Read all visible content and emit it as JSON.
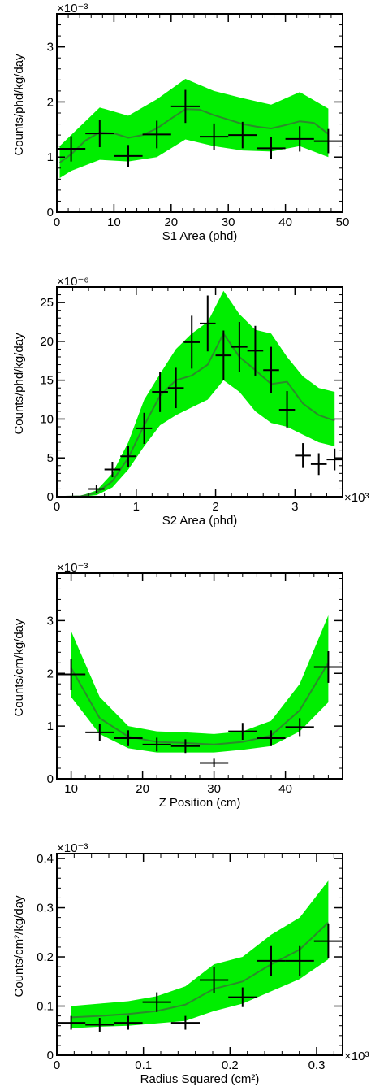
{
  "chart_data": [
    {
      "type": "scatter",
      "xlabel": "S1 Area (phd)",
      "ylabel": "Counts/phd/kg/day",
      "y_multiplier": "×10⁻³",
      "x_multiplier": "",
      "xlim": [
        0,
        50
      ],
      "ylim": [
        0,
        3.6
      ],
      "xticks": [
        0,
        10,
        20,
        30,
        40,
        50
      ],
      "xtick_labels": [
        "0",
        "10",
        "20",
        "30",
        "40",
        "50"
      ],
      "yticks": [
        0,
        1,
        2,
        3
      ],
      "ytick_labels": [
        "0",
        "1",
        "2",
        "3"
      ],
      "series": [
        {
          "kind": "band",
          "color": "#00ee00",
          "x": [
            0.5,
            2.5,
            7.5,
            12.5,
            17.5,
            22.5,
            27.5,
            32.5,
            37.5,
            42.5,
            47.5
          ],
          "lo": [
            0.62,
            0.75,
            0.95,
            0.92,
            1.0,
            1.32,
            1.2,
            1.12,
            1.1,
            1.2,
            1.0
          ],
          "hi": [
            1.2,
            1.4,
            1.9,
            1.75,
            2.05,
            2.42,
            2.2,
            2.07,
            1.95,
            2.18,
            1.88
          ]
        },
        {
          "kind": "line",
          "color": "#2c8a2c",
          "x": [
            0.5,
            2.5,
            5,
            7.5,
            10,
            12.5,
            15,
            17.5,
            20,
            22.5,
            25,
            27.5,
            30,
            32.5,
            35,
            37.5,
            40,
            42.5,
            45,
            47.5
          ],
          "y": [
            0.9,
            1.05,
            1.3,
            1.45,
            1.43,
            1.35,
            1.4,
            1.52,
            1.7,
            1.87,
            1.86,
            1.76,
            1.68,
            1.6,
            1.55,
            1.52,
            1.58,
            1.65,
            1.62,
            1.42
          ]
        },
        {
          "kind": "points",
          "x": [
            2.5,
            7.5,
            12.5,
            17.5,
            22.5,
            27.5,
            32.5,
            37.5,
            42.5,
            47.5
          ],
          "y": [
            1.15,
            1.43,
            1.02,
            1.41,
            1.92,
            1.37,
            1.4,
            1.16,
            1.33,
            1.29
          ],
          "xerr": [
            2.5,
            2.5,
            2.5,
            2.5,
            2.5,
            2.5,
            2.5,
            2.5,
            2.5,
            2.5
          ],
          "yerr": [
            0.23,
            0.25,
            0.2,
            0.25,
            0.3,
            0.24,
            0.24,
            0.2,
            0.23,
            0.22
          ]
        }
      ]
    },
    {
      "type": "scatter",
      "xlabel": "S2 Area (phd)",
      "ylabel": "Counts/phd/kg/day",
      "y_multiplier": "×10⁻⁶",
      "x_multiplier": "×10³",
      "xlim": [
        0,
        3.6
      ],
      "ylim": [
        0,
        27
      ],
      "xticks": [
        0,
        1,
        2,
        3
      ],
      "xtick_labels": [
        "0",
        "1",
        "2",
        "3"
      ],
      "yticks": [
        0,
        5,
        10,
        15,
        20,
        25
      ],
      "ytick_labels": [
        "0",
        "5",
        "10",
        "15",
        "20",
        "25"
      ],
      "series": [
        {
          "kind": "band",
          "color": "#00ee00",
          "x": [
            0.1,
            0.3,
            0.5,
            0.7,
            0.9,
            1.1,
            1.3,
            1.5,
            1.7,
            1.9,
            2.1,
            2.3,
            2.5,
            2.7,
            2.9,
            3.1,
            3.3,
            3.5
          ],
          "lo": [
            0,
            0,
            0.2,
            1.2,
            3.5,
            6.5,
            9.2,
            10.5,
            11.5,
            12.5,
            15.0,
            13.5,
            11.0,
            9.5,
            9.0,
            8.0,
            7.0,
            6.5
          ],
          "hi": [
            0,
            0.1,
            0.8,
            3.0,
            7.0,
            12.5,
            15.8,
            19.0,
            21.0,
            22.5,
            26.5,
            23.5,
            21.5,
            21.0,
            18.0,
            15.5,
            14.0,
            13.5
          ]
        },
        {
          "kind": "line",
          "color": "#2c8a2c",
          "x": [
            0.1,
            0.3,
            0.5,
            0.7,
            0.9,
            1.1,
            1.3,
            1.5,
            1.7,
            1.9,
            2.1,
            2.3,
            2.5,
            2.7,
            2.9,
            3.1,
            3.3,
            3.5
          ],
          "y": [
            0,
            0.05,
            0.5,
            2.0,
            5.0,
            9.2,
            13.0,
            15.0,
            15.6,
            17.0,
            21.0,
            18.0,
            16.3,
            14.5,
            14.8,
            12.0,
            10.5,
            9.8
          ]
        },
        {
          "kind": "points",
          "x": [
            0.5,
            0.7,
            0.9,
            1.1,
            1.3,
            1.5,
            1.7,
            1.9,
            2.1,
            2.3,
            2.5,
            2.7,
            2.9,
            3.1,
            3.3,
            3.5
          ],
          "y": [
            1.0,
            3.5,
            5.2,
            8.8,
            13.5,
            14.0,
            19.9,
            22.3,
            18.2,
            19.3,
            18.8,
            16.3,
            11.2,
            5.3,
            4.2,
            4.8
          ],
          "xerr": [
            0.1,
            0.1,
            0.1,
            0.1,
            0.1,
            0.1,
            0.1,
            0.1,
            0.1,
            0.1,
            0.1,
            0.1,
            0.1,
            0.1,
            0.1,
            0.1
          ],
          "yerr": [
            0.5,
            1.0,
            1.4,
            2.0,
            2.6,
            2.6,
            3.4,
            3.6,
            3.2,
            3.2,
            3.2,
            3.0,
            2.4,
            1.6,
            1.4,
            1.4
          ]
        }
      ]
    },
    {
      "type": "scatter",
      "xlabel": "Z Position (cm)",
      "ylabel": "Counts/cm/kg/day",
      "y_multiplier": "×10⁻³",
      "x_multiplier": "",
      "xlim": [
        8,
        48
      ],
      "ylim": [
        0,
        3.9
      ],
      "xticks": [
        10,
        20,
        30,
        40
      ],
      "xtick_labels": [
        "10",
        "20",
        "30",
        "40"
      ],
      "yticks": [
        0,
        1,
        2,
        3
      ],
      "ytick_labels": [
        "0",
        "1",
        "2",
        "3"
      ],
      "series": [
        {
          "kind": "band",
          "color": "#00ee00",
          "x": [
            10,
            14,
            18,
            22,
            26,
            30,
            34,
            38,
            42,
            46
          ],
          "lo": [
            1.55,
            0.85,
            0.58,
            0.5,
            0.5,
            0.5,
            0.55,
            0.62,
            0.9,
            1.45
          ],
          "hi": [
            2.8,
            1.55,
            1.0,
            0.9,
            0.88,
            0.85,
            0.9,
            1.1,
            1.8,
            3.1
          ]
        },
        {
          "kind": "line",
          "color": "#2c8a2c",
          "x": [
            10,
            14,
            18,
            22,
            26,
            30,
            34,
            38,
            42,
            46
          ],
          "y": [
            2.1,
            1.15,
            0.8,
            0.7,
            0.68,
            0.65,
            0.7,
            0.82,
            1.3,
            2.2
          ]
        },
        {
          "kind": "points",
          "x": [
            10,
            14,
            18,
            22,
            26,
            30,
            34,
            38,
            42,
            46
          ],
          "y": [
            1.98,
            0.88,
            0.77,
            0.65,
            0.62,
            0.3,
            0.9,
            0.77,
            0.98,
            2.12
          ],
          "xerr": [
            2,
            2,
            2,
            2,
            2,
            2,
            2,
            2,
            2,
            2
          ],
          "yerr": [
            0.3,
            0.16,
            0.15,
            0.13,
            0.13,
            0.08,
            0.16,
            0.15,
            0.17,
            0.3
          ]
        }
      ]
    },
    {
      "type": "scatter",
      "xlabel": "Radius Squared (cm²)",
      "ylabel": "Counts/cm²/kg/day",
      "y_multiplier": "×10⁻³",
      "x_multiplier": "×10³",
      "xlim": [
        0,
        0.33
      ],
      "ylim": [
        0,
        0.41
      ],
      "xticks": [
        0,
        0.1,
        0.2,
        0.3
      ],
      "xtick_labels": [
        "0",
        "0.1",
        "0.2",
        "0.3"
      ],
      "yticks": [
        0,
        0.1,
        0.2,
        0.3,
        0.4
      ],
      "ytick_labels": [
        "0",
        "0.1",
        "0.2",
        "0.3",
        "0.4"
      ],
      "series": [
        {
          "kind": "band",
          "color": "#00ee00",
          "x": [
            0.0165,
            0.0495,
            0.0825,
            0.1155,
            0.1485,
            0.1815,
            0.2145,
            0.2475,
            0.2805,
            0.3135
          ],
          "lo": [
            0.055,
            0.058,
            0.06,
            0.065,
            0.07,
            0.09,
            0.105,
            0.13,
            0.155,
            0.195
          ],
          "hi": [
            0.1,
            0.105,
            0.11,
            0.12,
            0.14,
            0.185,
            0.2,
            0.245,
            0.28,
            0.355
          ]
        },
        {
          "kind": "line",
          "color": "#2c8a2c",
          "x": [
            0.0165,
            0.0495,
            0.0825,
            0.1155,
            0.1485,
            0.1815,
            0.2145,
            0.2475,
            0.2805,
            0.3135
          ],
          "y": [
            0.077,
            0.08,
            0.084,
            0.09,
            0.103,
            0.135,
            0.15,
            0.185,
            0.215,
            0.27
          ]
        },
        {
          "kind": "points",
          "x": [
            0.0165,
            0.0495,
            0.0825,
            0.1155,
            0.1485,
            0.1815,
            0.2145,
            0.2475,
            0.2805,
            0.3135
          ],
          "y": [
            0.066,
            0.062,
            0.066,
            0.108,
            0.066,
            0.153,
            0.118,
            0.192,
            0.192,
            0.232
          ],
          "xerr": [
            0.0165,
            0.0165,
            0.0165,
            0.0165,
            0.0165,
            0.0165,
            0.0165,
            0.0165,
            0.0165,
            0.0165
          ],
          "yerr": [
            0.014,
            0.014,
            0.014,
            0.02,
            0.014,
            0.026,
            0.02,
            0.03,
            0.03,
            0.035
          ]
        }
      ]
    }
  ]
}
